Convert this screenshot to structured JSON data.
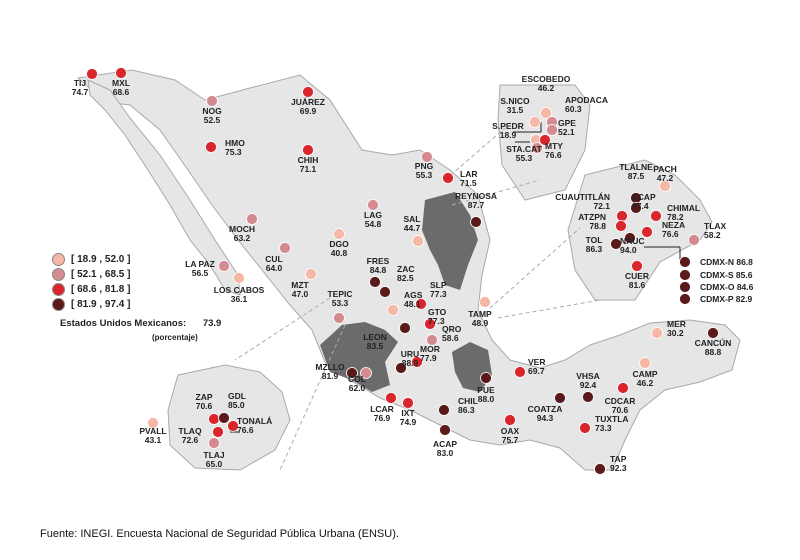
{
  "colors": {
    "bin1": "#f4b8a5",
    "bin2": "#d58a8f",
    "bin3": "#d8262c",
    "bin4": "#5a1a1a",
    "land": "#e6e6e6",
    "land_stroke": "#a9a9a9",
    "shaded": "#6b6b6b"
  },
  "legend": {
    "bins": [
      {
        "label": "[ 18.9 , 52.0 ]"
      },
      {
        "label": "[ 52.1 , 68.5 ]"
      },
      {
        "label": "[ 68.6 , 81.8 ]"
      },
      {
        "label": "[ 81.9 , 97.4 ]"
      }
    ]
  },
  "national": {
    "label": "Estados Unidos Mexicanos:",
    "value": "73.9",
    "unit": "(porcentaje)"
  },
  "source": "Fuente: INEGI. Encuesta Nacional de Seguridad Pública Urbana (ENSU).",
  "cities": [
    {
      "name": "TIJ",
      "value": "74.7"
    },
    {
      "name": "MXL",
      "value": "68.6"
    },
    {
      "name": "NOG",
      "value": "52.5"
    },
    {
      "name": "JUÁREZ",
      "value": "69.9"
    },
    {
      "name": "HMO",
      "value": "75.3"
    },
    {
      "name": "CHIH",
      "value": "71.1"
    },
    {
      "name": "PNG",
      "value": "55.3"
    },
    {
      "name": "LAR",
      "value": "71.5"
    },
    {
      "name": "REYNOSA",
      "value": "87.7"
    },
    {
      "name": "MOCH",
      "value": "63.2"
    },
    {
      "name": "LAG",
      "value": "54.8"
    },
    {
      "name": "SAL",
      "value": "44.7"
    },
    {
      "name": "DGO",
      "value": "40.8"
    },
    {
      "name": "CUL",
      "value": "64.0"
    },
    {
      "name": "LA PAZ",
      "value": "56.5"
    },
    {
      "name": "LOS CABOS",
      "value": "36.1"
    },
    {
      "name": "MZT",
      "value": "47.0"
    },
    {
      "name": "FRES",
      "value": "84.8"
    },
    {
      "name": "ZAC",
      "value": "82.5"
    },
    {
      "name": "AGS",
      "value": "48.1"
    },
    {
      "name": "SLP",
      "value": "77.3"
    },
    {
      "name": "TAMP",
      "value": "48.9"
    },
    {
      "name": "TEPIC",
      "value": "53.3"
    },
    {
      "name": "GTO",
      "value": "77.3"
    },
    {
      "name": "QRO",
      "value": "58.6"
    },
    {
      "name": "LEON",
      "value": "83.5"
    },
    {
      "name": "MOR",
      "value": "77.9"
    },
    {
      "name": "MZLLO",
      "value": "81.9"
    },
    {
      "name": "COL",
      "value": "62.0"
    },
    {
      "name": "URU",
      "value": "88.9"
    },
    {
      "name": "LCAR",
      "value": "76.9"
    },
    {
      "name": "IXT",
      "value": "74.9"
    },
    {
      "name": "PUE",
      "value": "88.0"
    },
    {
      "name": "CHIL",
      "value": "86.3"
    },
    {
      "name": "ACAP",
      "value": "83.0"
    },
    {
      "name": "OAX",
      "value": "75.7"
    },
    {
      "name": "VER",
      "value": "69.7"
    },
    {
      "name": "COATZA",
      "value": "94.3"
    },
    {
      "name": "VHSA",
      "value": "92.4"
    },
    {
      "name": "CDCAR",
      "value": "70.6"
    },
    {
      "name": "TUXTLA",
      "value": "73.3"
    },
    {
      "name": "TAP",
      "value": "92.3"
    },
    {
      "name": "CAMP",
      "value": "46.2"
    },
    {
      "name": "MER",
      "value": "30.2"
    },
    {
      "name": "CANCÚN",
      "value": "88.8"
    },
    {
      "name": "ESCOBEDO",
      "value": "46.2"
    },
    {
      "name": "S.NICO",
      "value": "31.5"
    },
    {
      "name": "APODACA",
      "value": "60.3"
    },
    {
      "name": "S.PEDR",
      "value": "18.9"
    },
    {
      "name": "GPE",
      "value": "52.1"
    },
    {
      "name": "STA.CAT",
      "value": "55.3"
    },
    {
      "name": "MTY",
      "value": "76.6"
    },
    {
      "name": "TLALNE",
      "value": "87.5"
    },
    {
      "name": "PACH",
      "value": "47.2"
    },
    {
      "name": "CUAUTITLÁN",
      "value": "72.1"
    },
    {
      "name": "ECAP",
      "value": "97.4"
    },
    {
      "name": "ATZPN",
      "value": "78.8"
    },
    {
      "name": "CHIMAL",
      "value": "78.2"
    },
    {
      "name": "NEZA",
      "value": "76.6"
    },
    {
      "name": "TLAX",
      "value": "58.2"
    },
    {
      "name": "TOL",
      "value": "86.3"
    },
    {
      "name": "NAUC",
      "value": "94.0"
    },
    {
      "name": "CUER",
      "value": "81.6"
    },
    {
      "name": "CDMX-N",
      "value": "86.8"
    },
    {
      "name": "CDMX-S",
      "value": "85.6"
    },
    {
      "name": "CDMX-O",
      "value": "84.6"
    },
    {
      "name": "CDMX-P",
      "value": "82.9"
    },
    {
      "name": "ZAP",
      "value": "70.6"
    },
    {
      "name": "GDL",
      "value": "85.0"
    },
    {
      "name": "PVALL",
      "value": "43.1"
    },
    {
      "name": "TLAQ",
      "value": "72.6"
    },
    {
      "name": "TONALÁ",
      "value": "76.6"
    },
    {
      "name": "TLAJ",
      "value": "65.0"
    }
  ]
}
